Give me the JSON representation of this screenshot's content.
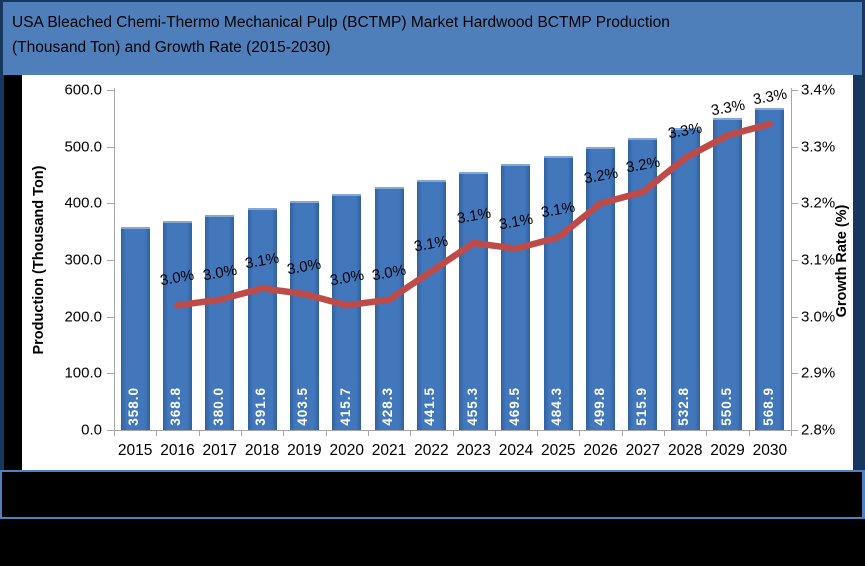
{
  "title": {
    "line1": "USA Bleached Chemi-Thermo Mechanical Pulp (BCTMP) Market Hardwood BCTMP Production",
    "line2": "(Thousand Ton) and Growth Rate (2015-2030)"
  },
  "chart_data": {
    "type": "bar",
    "combo": "bar+line dual-axis",
    "title": "USA Bleached Chemi-Thermo Mechanical Pulp (BCTMP) Market Hardwood BCTMP Production (Thousand Ton) and Growth Rate (2015-2030)",
    "categories": [
      "2015",
      "2016",
      "2017",
      "2018",
      "2019",
      "2020",
      "2021",
      "2022",
      "2023",
      "2024",
      "2025",
      "2026",
      "2027",
      "2028",
      "2029",
      "2030"
    ],
    "series": [
      {
        "name": "Production (Thousand Ton)",
        "type": "bar",
        "axis": "left",
        "values": [
          358.0,
          368.8,
          380.0,
          391.6,
          403.5,
          415.7,
          428.3,
          441.5,
          455.3,
          469.5,
          484.3,
          499.8,
          515.9,
          532.8,
          550.5,
          568.9
        ],
        "data_labels": [
          "358.0",
          "368.8",
          "380.0",
          "391.6",
          "403.5",
          "415.7",
          "428.3",
          "441.5",
          "455.3",
          "469.5",
          "484.3",
          "499.8",
          "515.9",
          "532.8",
          "550.5",
          "568.9"
        ],
        "color": "#3C6EB4"
      },
      {
        "name": "Growth Rate (%)",
        "type": "line",
        "axis": "right",
        "start_index": 1,
        "values": [
          3.02,
          3.03,
          3.05,
          3.04,
          3.02,
          3.03,
          3.08,
          3.13,
          3.12,
          3.14,
          3.2,
          3.22,
          3.28,
          3.32,
          3.34
        ],
        "data_labels": [
          "3.0%",
          "3.0%",
          "3.1%",
          "3.0%",
          "3.0%",
          "3.0%",
          "3.1%",
          "3.1%",
          "3.1%",
          "3.1%",
          "3.2%",
          "3.2%",
          "3.3%",
          "3.3%",
          "3.3%"
        ],
        "color": "#BE4B48"
      }
    ],
    "left_axis": {
      "title": "Production (Thousand Ton)",
      "min": 0,
      "max": 600,
      "step": 100,
      "tick_labels": [
        "600.0",
        "500.0",
        "400.0",
        "300.0",
        "200.0",
        "100.0",
        "0.0"
      ]
    },
    "right_axis": {
      "title": "Growth Rate (%)",
      "min": 2.8,
      "max": 3.4,
      "step": 0.1,
      "tick_labels": [
        "3.4%",
        "3.3%",
        "3.2%",
        "3.1%",
        "3.0%",
        "2.9%",
        "2.8%"
      ]
    },
    "grid": false,
    "legend_position": "none (covered by black band)"
  },
  "colors": {
    "title_band": "#4E7FBA",
    "outer_border": "#17375E",
    "bar_fill": "#3C6EB4",
    "line": "#BE4B48",
    "separator_line": "#4F81BD",
    "axis_gray": "#A6A6A6",
    "bar_label_text": "#FFFFFF",
    "redacted_band": "#000000"
  }
}
